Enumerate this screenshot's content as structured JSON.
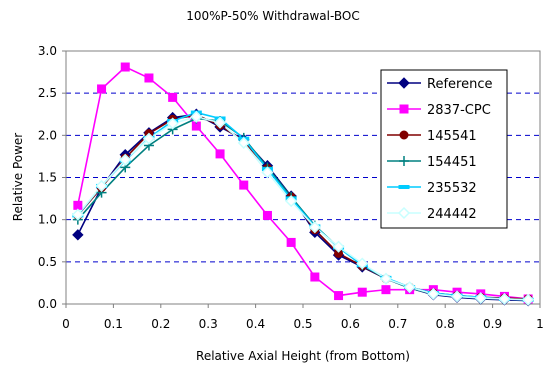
{
  "chart_data": {
    "type": "line",
    "title": "100%P-50% Withdrawal-BOC",
    "xlabel": "Relative Axial Height (from Bottom)",
    "ylabel": "Relative Power",
    "xlim": [
      0,
      1
    ],
    "ylim": [
      0,
      3.0
    ],
    "x_ticks": [
      "0",
      "0.1",
      "0.2",
      "0.3",
      "0.4",
      "0.5",
      "0.6",
      "0.7",
      "0.8",
      "0.9",
      "1"
    ],
    "y_ticks": [
      "0.0",
      "0.5",
      "1.0",
      "1.5",
      "2.0",
      "2.5",
      "3.0"
    ],
    "grid": "horizontal dashed",
    "legend_position": "right",
    "x": [
      0.025,
      0.075,
      0.125,
      0.175,
      0.225,
      0.275,
      0.325,
      0.375,
      0.425,
      0.475,
      0.525,
      0.575,
      0.625,
      0.675,
      0.725,
      0.775,
      0.825,
      0.875,
      0.925,
      0.975
    ],
    "series": [
      {
        "name": "Reference",
        "color": "#000080",
        "marker": "diamond",
        "values": [
          0.82,
          1.38,
          1.77,
          2.03,
          2.21,
          2.25,
          2.1,
          1.95,
          1.64,
          1.28,
          0.85,
          0.58,
          0.44,
          0.3,
          0.19,
          0.11,
          0.08,
          0.06,
          0.05,
          0.04
        ]
      },
      {
        "name": "2837-CPC",
        "color": "#ff00ff",
        "marker": "square",
        "values": [
          1.17,
          2.55,
          2.81,
          2.68,
          2.45,
          2.11,
          1.78,
          1.41,
          1.05,
          0.73,
          0.32,
          0.1,
          0.14,
          0.17,
          0.17,
          0.17,
          0.14,
          0.12,
          0.09,
          0.06
        ]
      },
      {
        "name": "145541",
        "color": "#800000",
        "marker": "circle",
        "values": [
          1.05,
          1.38,
          1.73,
          2.02,
          2.19,
          2.24,
          2.12,
          1.93,
          1.61,
          1.27,
          0.88,
          0.6,
          0.45,
          0.3,
          0.2,
          0.13,
          0.1,
          0.08,
          0.07,
          0.06
        ]
      },
      {
        "name": "154451",
        "color": "#008080",
        "marker": "plus",
        "values": [
          1.0,
          1.32,
          1.62,
          1.88,
          2.07,
          2.2,
          2.17,
          1.97,
          1.62,
          1.27,
          0.93,
          0.67,
          0.46,
          0.3,
          0.19,
          0.12,
          0.09,
          0.07,
          0.06,
          0.05
        ]
      },
      {
        "name": "235532",
        "color": "#00ccff",
        "marker": "dash",
        "values": [
          1.05,
          1.4,
          1.7,
          1.97,
          2.17,
          2.27,
          2.2,
          1.96,
          1.6,
          1.25,
          0.92,
          0.67,
          0.46,
          0.31,
          0.2,
          0.13,
          0.1,
          0.08,
          0.06,
          0.05
        ]
      },
      {
        "name": "244442",
        "color": "#c8ffff",
        "marker": "diamond-open",
        "values": [
          1.06,
          1.4,
          1.71,
          1.96,
          2.14,
          2.22,
          2.15,
          1.91,
          1.56,
          1.22,
          0.91,
          0.68,
          0.48,
          0.3,
          0.2,
          0.12,
          0.09,
          0.07,
          0.06,
          0.05
        ]
      }
    ]
  }
}
